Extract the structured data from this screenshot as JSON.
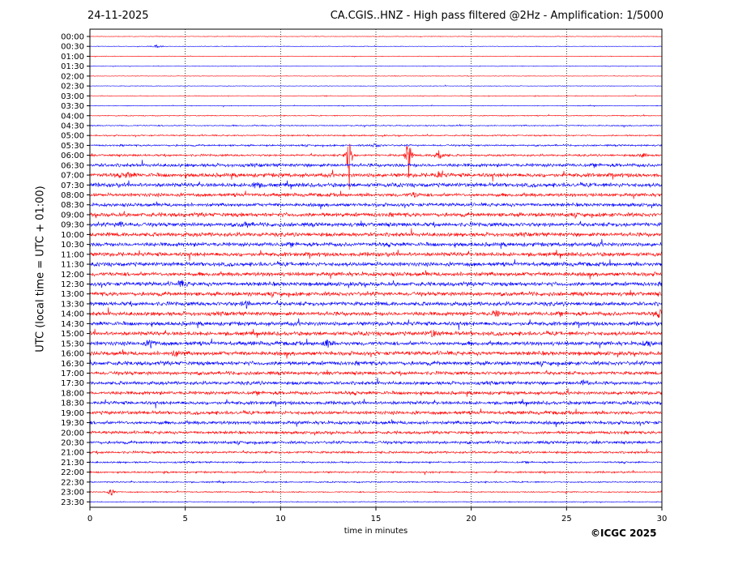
{
  "header": {
    "date": "24-11-2025",
    "title": "CA.CGIS..HNZ - High pass filtered @2Hz - Amplification: 1/5000"
  },
  "footer": {
    "copyright": "©ICGC 2025"
  },
  "chart_data": {
    "type": "line",
    "title": "CA.CGIS..HNZ - High pass filtered @2Hz - Amplification: 1/5000",
    "xlabel": "time in minutes",
    "ylabel": "UTC (local time = UTC + 01:00)",
    "xlim": [
      0,
      30
    ],
    "x_ticks": [
      "0",
      "5",
      "10",
      "15",
      "20",
      "25",
      "30"
    ],
    "x_tick_values": [
      0,
      5,
      10,
      15,
      20,
      25,
      30
    ],
    "grid": "vertical dotted lines at 5-minute ticks",
    "trace_colors": [
      "#ff0000",
      "#0000ff"
    ],
    "rows": [
      "00:00",
      "00:30",
      "01:00",
      "01:30",
      "02:00",
      "02:30",
      "03:00",
      "03:30",
      "04:00",
      "04:30",
      "05:00",
      "05:30",
      "06:00",
      "06:30",
      "07:00",
      "07:30",
      "08:00",
      "08:30",
      "09:00",
      "09:30",
      "10:00",
      "10:30",
      "11:00",
      "11:30",
      "12:00",
      "12:30",
      "13:00",
      "13:30",
      "14:00",
      "14:30",
      "15:00",
      "15:30",
      "16:00",
      "16:30",
      "17:00",
      "17:30",
      "18:00",
      "18:30",
      "19:00",
      "19:30",
      "20:00",
      "20:30",
      "21:00",
      "21:30",
      "22:00",
      "22:30",
      "23:00",
      "23:30"
    ],
    "noise_level": [
      0.05,
      0.05,
      0.05,
      0.05,
      0.05,
      0.05,
      0.06,
      0.06,
      0.08,
      0.1,
      0.12,
      0.15,
      0.18,
      0.3,
      0.35,
      0.35,
      0.3,
      0.3,
      0.35,
      0.35,
      0.35,
      0.35,
      0.35,
      0.35,
      0.35,
      0.35,
      0.35,
      0.35,
      0.35,
      0.35,
      0.35,
      0.35,
      0.35,
      0.35,
      0.3,
      0.3,
      0.3,
      0.3,
      0.3,
      0.3,
      0.25,
      0.25,
      0.2,
      0.15,
      0.15,
      0.12,
      0.1,
      0.08
    ],
    "events": [
      {
        "row": "00:30",
        "minute": 3.5,
        "amplitude": 0.4
      },
      {
        "row": "05:30",
        "minute": 15.0,
        "amplitude": 0.5
      },
      {
        "row": "06:00",
        "minute": 13.6,
        "amplitude": 8.0
      },
      {
        "row": "06:00",
        "minute": 16.7,
        "amplitude": 6.0
      },
      {
        "row": "06:00",
        "minute": 18.3,
        "amplitude": 1.2
      },
      {
        "row": "06:00",
        "minute": 29.0,
        "amplitude": 0.5
      },
      {
        "row": "07:00",
        "minute": 2.0,
        "amplitude": 0.6
      },
      {
        "row": "07:00",
        "minute": 18.3,
        "amplitude": 0.6
      },
      {
        "row": "07:30",
        "minute": 8.7,
        "amplitude": 0.7
      },
      {
        "row": "08:00",
        "minute": 17.0,
        "amplitude": 0.5
      },
      {
        "row": "09:30",
        "minute": 1.6,
        "amplitude": 0.6
      },
      {
        "row": "09:30",
        "minute": 8.2,
        "amplitude": 0.6
      },
      {
        "row": "12:30",
        "minute": 4.8,
        "amplitude": 0.6
      },
      {
        "row": "13:30",
        "minute": 8.2,
        "amplitude": 0.7
      },
      {
        "row": "14:00",
        "minute": 21.3,
        "amplitude": 0.6
      },
      {
        "row": "14:00",
        "minute": 29.9,
        "amplitude": 0.6
      },
      {
        "row": "15:00",
        "minute": 18.0,
        "amplitude": 0.7
      },
      {
        "row": "15:30",
        "minute": 3.2,
        "amplitude": 0.9
      },
      {
        "row": "15:30",
        "minute": 12.4,
        "amplitude": 0.8
      },
      {
        "row": "15:30",
        "minute": 29.3,
        "amplitude": 0.6
      },
      {
        "row": "16:00",
        "minute": 4.5,
        "amplitude": 0.6
      },
      {
        "row": "17:30",
        "minute": 25.9,
        "amplitude": 0.6
      },
      {
        "row": "23:00",
        "minute": 1.1,
        "amplitude": 0.7
      }
    ]
  }
}
